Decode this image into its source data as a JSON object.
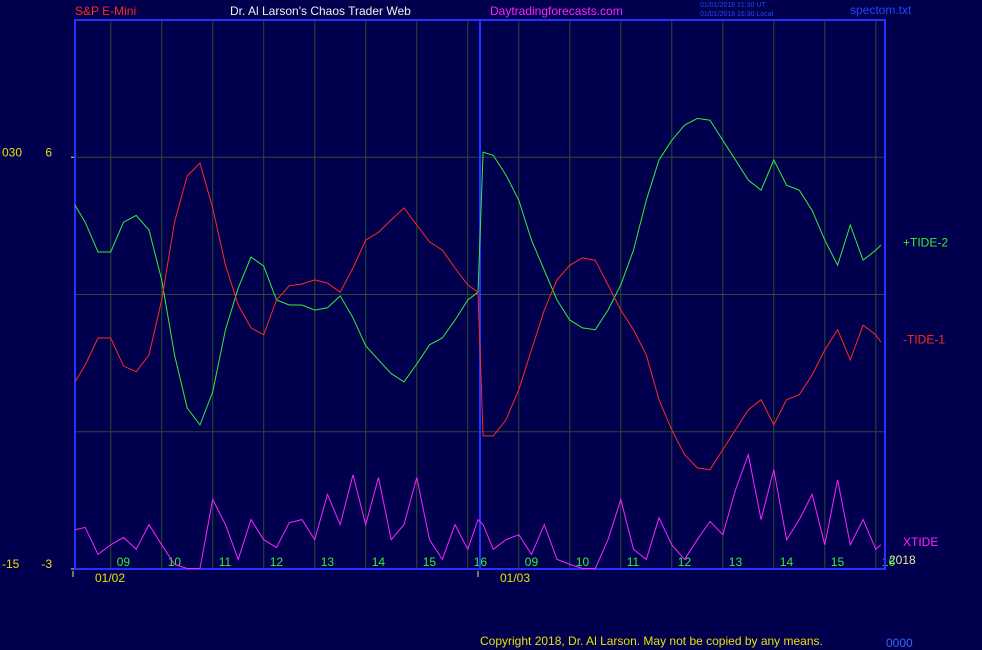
{
  "chart_data": {
    "type": "line",
    "header": {
      "symbol": "S&P E-Mini",
      "title": "Dr. Al Larson's Chaos Trader Web",
      "site": "Daytradingforecasts.com",
      "time_ut": "01/01/2018 21:30 UT",
      "time_local": "01/01/2018 16:30 Local",
      "file": "spectom.txt"
    },
    "footer": {
      "copyright": "Copyright 2018, Dr. Al Larson. May not be copied by any means.",
      "code": "0000"
    },
    "year_label": "2018",
    "x": [
      8.3,
      8.5,
      8.75,
      9,
      9.25,
      9.5,
      9.75,
      10,
      10.25,
      10.5,
      10.75,
      11,
      11.25,
      11.5,
      11.75,
      12,
      12.25,
      12.5,
      12.75,
      13,
      13.25,
      13.5,
      13.75,
      14,
      14.25,
      14.5,
      14.75,
      15,
      15.25,
      15.5,
      15.75,
      16,
      16.2,
      16.3,
      16.5,
      16.75,
      17,
      17.25,
      17.5,
      17.75,
      18,
      18.25,
      18.5,
      18.75,
      19,
      19.25,
      19.5,
      19.75,
      20,
      20.25,
      20.5,
      20.75,
      21,
      21.25,
      21.5,
      21.75,
      22,
      22.25,
      22.5,
      22.75,
      23,
      23.25,
      23.5,
      23.75,
      24,
      24.1
    ],
    "series": [
      {
        "name": "+TIDE-2",
        "color": "#33ee33",
        "values": [
          4.95,
          4.58,
          3.93,
          3.93,
          4.58,
          4.73,
          4.41,
          3.32,
          1.68,
          0.52,
          0.15,
          0.87,
          2.23,
          3.14,
          3.82,
          3.62,
          2.88,
          2.77,
          2.77,
          2.66,
          2.71,
          2.97,
          2.49,
          1.88,
          1.57,
          1.27,
          1.09,
          1.48,
          1.9,
          2.05,
          2.44,
          2.88,
          3.05,
          6.11,
          6.04,
          5.61,
          5.06,
          4.19,
          3.53,
          2.88,
          2.44,
          2.27,
          2.23,
          2.66,
          3.21,
          3.97,
          5.06,
          5.94,
          6.37,
          6.7,
          6.85,
          6.81,
          6.37,
          5.94,
          5.5,
          5.28,
          5.94,
          5.39,
          5.28,
          4.84,
          4.19,
          3.64,
          4.52,
          3.75,
          3.97,
          4.08
        ]
      },
      {
        "name": "-TIDE-1",
        "color": "#ff2a1a",
        "values": [
          1.09,
          1.46,
          2.05,
          2.05,
          1.44,
          1.31,
          1.68,
          2.88,
          4.58,
          5.59,
          5.87,
          4.89,
          3.64,
          2.77,
          2.27,
          2.12,
          2.88,
          3.19,
          3.23,
          3.32,
          3.25,
          3.05,
          3.58,
          4.19,
          4.36,
          4.63,
          4.89,
          4.52,
          4.15,
          3.97,
          3.58,
          3.21,
          3.05,
          -0.09,
          -0.09,
          0.26,
          0.92,
          1.79,
          2.66,
          3.32,
          3.64,
          3.8,
          3.75,
          3.21,
          2.66,
          2.23,
          1.68,
          0.7,
          0.04,
          -0.5,
          -0.79,
          -0.83,
          -0.39,
          0.04,
          0.48,
          0.7,
          0.15,
          0.7,
          0.81,
          1.24,
          1.79,
          2.23,
          1.57,
          2.33,
          2.12,
          1.96
        ]
      },
      {
        "name": "XTIDE",
        "color": "#ff22ff",
        "values": [
          -2.14,
          -2.09,
          -2.68,
          -2.47,
          -2.31,
          -2.57,
          -2.03,
          -2.47,
          -2.9,
          -2.99,
          -2.99,
          -1.48,
          -2.03,
          -2.79,
          -1.92,
          -2.36,
          -2.53,
          -1.99,
          -1.92,
          -2.36,
          -1.37,
          -2.03,
          -0.94,
          -2.03,
          -1.0,
          -2.36,
          -2.03,
          -1.0,
          -2.36,
          -2.79,
          -2.03,
          -2.57,
          -1.92,
          -2.03,
          -2.57,
          -2.36,
          -2.25,
          -2.68,
          -2.03,
          -2.79,
          -2.9,
          -2.99,
          -2.99,
          -2.36,
          -1.48,
          -2.57,
          -2.79,
          -1.88,
          -2.47,
          -2.79,
          -2.36,
          -1.96,
          -2.25,
          -1.27,
          -0.5,
          -1.92,
          -0.83,
          -2.36,
          -1.92,
          -1.37,
          -2.47,
          -1.05,
          -2.47,
          -1.92,
          -2.57,
          -2.47
        ]
      }
    ],
    "xlim": [
      8.3,
      24.18
    ],
    "xticks": [
      {
        "value": 9,
        "label": "09"
      },
      10,
      11,
      12,
      13,
      14,
      15,
      16,
      {
        "value": 17,
        "label": "09"
      },
      {
        "value": 18,
        "label": "10"
      },
      {
        "value": 19,
        "label": "11"
      },
      {
        "value": 20,
        "label": "12"
      },
      {
        "value": 21,
        "label": "13"
      },
      {
        "value": 22,
        "label": "14"
      },
      {
        "value": 23,
        "label": "15"
      },
      {
        "value": 24,
        "label": "16"
      }
    ],
    "date_ticks": [
      {
        "value": 8.3,
        "label": "01/02"
      },
      {
        "value": 16.24,
        "label": "01/03"
      }
    ],
    "ylim": [
      -3,
      9
    ],
    "yticks": [
      -3,
      6
    ],
    "ygrid": [
      0,
      3,
      6
    ],
    "y2lim": [
      -15,
      45
    ],
    "y2ticks": [
      -15,
      {
        "value": 30,
        "label": "030"
      }
    ],
    "grid": true
  }
}
